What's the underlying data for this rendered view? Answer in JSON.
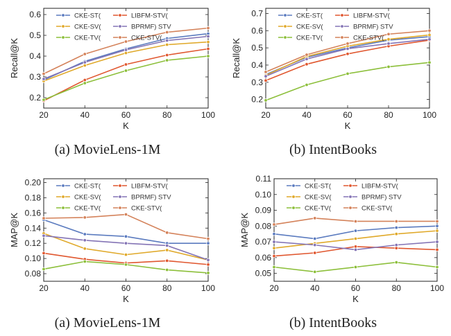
{
  "chart_data": [
    {
      "type": "line",
      "caption": "(a) MovieLens-1M",
      "xlabel": "K",
      "ylabel": "Recall@K",
      "x": [
        20,
        40,
        60,
        80,
        100
      ],
      "xlim": [
        20,
        100
      ],
      "ylim": [
        0.15,
        0.63
      ],
      "xticks": [
        20,
        40,
        60,
        80,
        100
      ],
      "yticks": [
        0.2,
        0.3,
        0.4,
        0.5,
        0.6
      ],
      "ytick_labels": [
        "0.2",
        "0.3",
        "0.4",
        "0.5",
        "0.6"
      ],
      "series": [
        {
          "name": "CKE-ST(",
          "color": "#5b7bbf",
          "values": [
            0.285,
            0.375,
            0.435,
            0.485,
            0.508
          ]
        },
        {
          "name": "LIBFM-STV(",
          "color": "#e0572f",
          "values": [
            0.185,
            0.285,
            0.36,
            0.405,
            0.435
          ]
        },
        {
          "name": "CKE-SV(",
          "color": "#e0a92a",
          "values": [
            0.28,
            0.355,
            0.415,
            0.455,
            0.468
          ]
        },
        {
          "name": "BPRMF) STV",
          "color": "#8474b5",
          "values": [
            0.29,
            0.37,
            0.43,
            0.475,
            0.495
          ]
        },
        {
          "name": "CKE-TV(",
          "color": "#8cbf3a",
          "values": [
            0.19,
            0.27,
            0.33,
            0.38,
            0.4
          ]
        },
        {
          "name": "CKE-STV(",
          "color": "#d4825a",
          "values": [
            0.315,
            0.41,
            0.47,
            0.515,
            0.535
          ]
        }
      ]
    },
    {
      "type": "line",
      "caption": "(b) IntentBooks",
      "xlabel": "K",
      "ylabel": "Recall@K",
      "x": [
        20,
        40,
        60,
        80,
        100
      ],
      "xlim": [
        20,
        100
      ],
      "ylim": [
        0.15,
        0.73
      ],
      "xticks": [
        20,
        40,
        60,
        80,
        100
      ],
      "yticks": [
        0.2,
        0.3,
        0.4,
        0.5,
        0.6,
        0.7
      ],
      "ytick_labels": [
        "0.2",
        "0.3",
        "0.4",
        "0.5",
        "0.6",
        "0.7"
      ],
      "series": [
        {
          "name": "CKE-ST(",
          "color": "#5b7bbf",
          "values": [
            0.345,
            0.445,
            0.5,
            0.545,
            0.565
          ]
        },
        {
          "name": "LIBFM-STV(",
          "color": "#e0572f",
          "values": [
            0.31,
            0.405,
            0.465,
            0.51,
            0.545
          ]
        },
        {
          "name": "CKE-SV(",
          "color": "#e0a92a",
          "values": [
            0.34,
            0.45,
            0.51,
            0.55,
            0.575
          ]
        },
        {
          "name": "BPRMF) STV",
          "color": "#8474b5",
          "values": [
            0.335,
            0.435,
            0.495,
            0.525,
            0.55
          ]
        },
        {
          "name": "CKE-TV(",
          "color": "#8cbf3a",
          "values": [
            0.195,
            0.285,
            0.35,
            0.39,
            0.415
          ]
        },
        {
          "name": "CKE-STV(",
          "color": "#d4825a",
          "values": [
            0.36,
            0.46,
            0.525,
            0.58,
            0.6
          ]
        }
      ]
    },
    {
      "type": "line",
      "caption": "(a) MovieLens-1M",
      "xlabel": "K",
      "ylabel": "MAP@K",
      "x": [
        20,
        40,
        60,
        80,
        100
      ],
      "xlim": [
        20,
        100
      ],
      "ylim": [
        0.07,
        0.205
      ],
      "xticks": [
        20,
        40,
        60,
        80,
        100
      ],
      "yticks": [
        0.08,
        0.1,
        0.12,
        0.14,
        0.16,
        0.18,
        0.2
      ],
      "ytick_labels": [
        "0.08",
        "0.10",
        "0.12",
        "0.14",
        "0.16",
        "0.18",
        "0.20"
      ],
      "series": [
        {
          "name": "CKE-ST(",
          "color": "#5b7bbf",
          "values": [
            0.151,
            0.132,
            0.129,
            0.12,
            0.12
          ]
        },
        {
          "name": "LIBFM-STV(",
          "color": "#e0572f",
          "values": [
            0.107,
            0.099,
            0.094,
            0.097,
            0.092
          ]
        },
        {
          "name": "CKE-SV(",
          "color": "#e0a92a",
          "values": [
            0.133,
            0.113,
            0.105,
            0.111,
            0.098
          ]
        },
        {
          "name": "BPRMF) STV",
          "color": "#8474b5",
          "values": [
            0.13,
            0.124,
            0.12,
            0.117,
            0.098
          ]
        },
        {
          "name": "CKE-TV(",
          "color": "#8cbf3a",
          "values": [
            0.086,
            0.096,
            0.092,
            0.085,
            0.081
          ]
        },
        {
          "name": "CKE-STV(",
          "color": "#d4825a",
          "values": [
            0.153,
            0.154,
            0.158,
            0.134,
            0.126
          ]
        }
      ]
    },
    {
      "type": "line",
      "caption": "(b) IntentBooks",
      "xlabel": "K",
      "ylabel": "MAP@K",
      "x": [
        20,
        40,
        60,
        80,
        100
      ],
      "xlim": [
        20,
        100
      ],
      "ylim": [
        0.045,
        0.11
      ],
      "xticks": [
        20,
        40,
        60,
        80,
        100
      ],
      "yticks": [
        0.05,
        0.06,
        0.07,
        0.08,
        0.09,
        0.1,
        0.11
      ],
      "ytick_labels": [
        "0.05",
        "0.06",
        "0.07",
        "0.08",
        "0.09",
        "0.10",
        "0.11"
      ],
      "series": [
        {
          "name": "CKE-ST(",
          "color": "#5b7bbf",
          "values": [
            0.075,
            0.072,
            0.077,
            0.079,
            0.08
          ]
        },
        {
          "name": "LIBFM-STV(",
          "color": "#e0572f",
          "values": [
            0.061,
            0.063,
            0.067,
            0.066,
            0.065
          ]
        },
        {
          "name": "CKE-SV(",
          "color": "#e0a92a",
          "values": [
            0.066,
            0.069,
            0.072,
            0.075,
            0.077
          ]
        },
        {
          "name": "BPRMF) STV",
          "color": "#8474b5",
          "values": [
            0.07,
            0.068,
            0.065,
            0.068,
            0.07
          ]
        },
        {
          "name": "CKE-TV(",
          "color": "#8cbf3a",
          "values": [
            0.054,
            0.051,
            0.054,
            0.057,
            0.054
          ]
        },
        {
          "name": "CKE-STV(",
          "color": "#d4825a",
          "values": [
            0.081,
            0.085,
            0.083,
            0.083,
            0.083
          ]
        }
      ]
    }
  ]
}
